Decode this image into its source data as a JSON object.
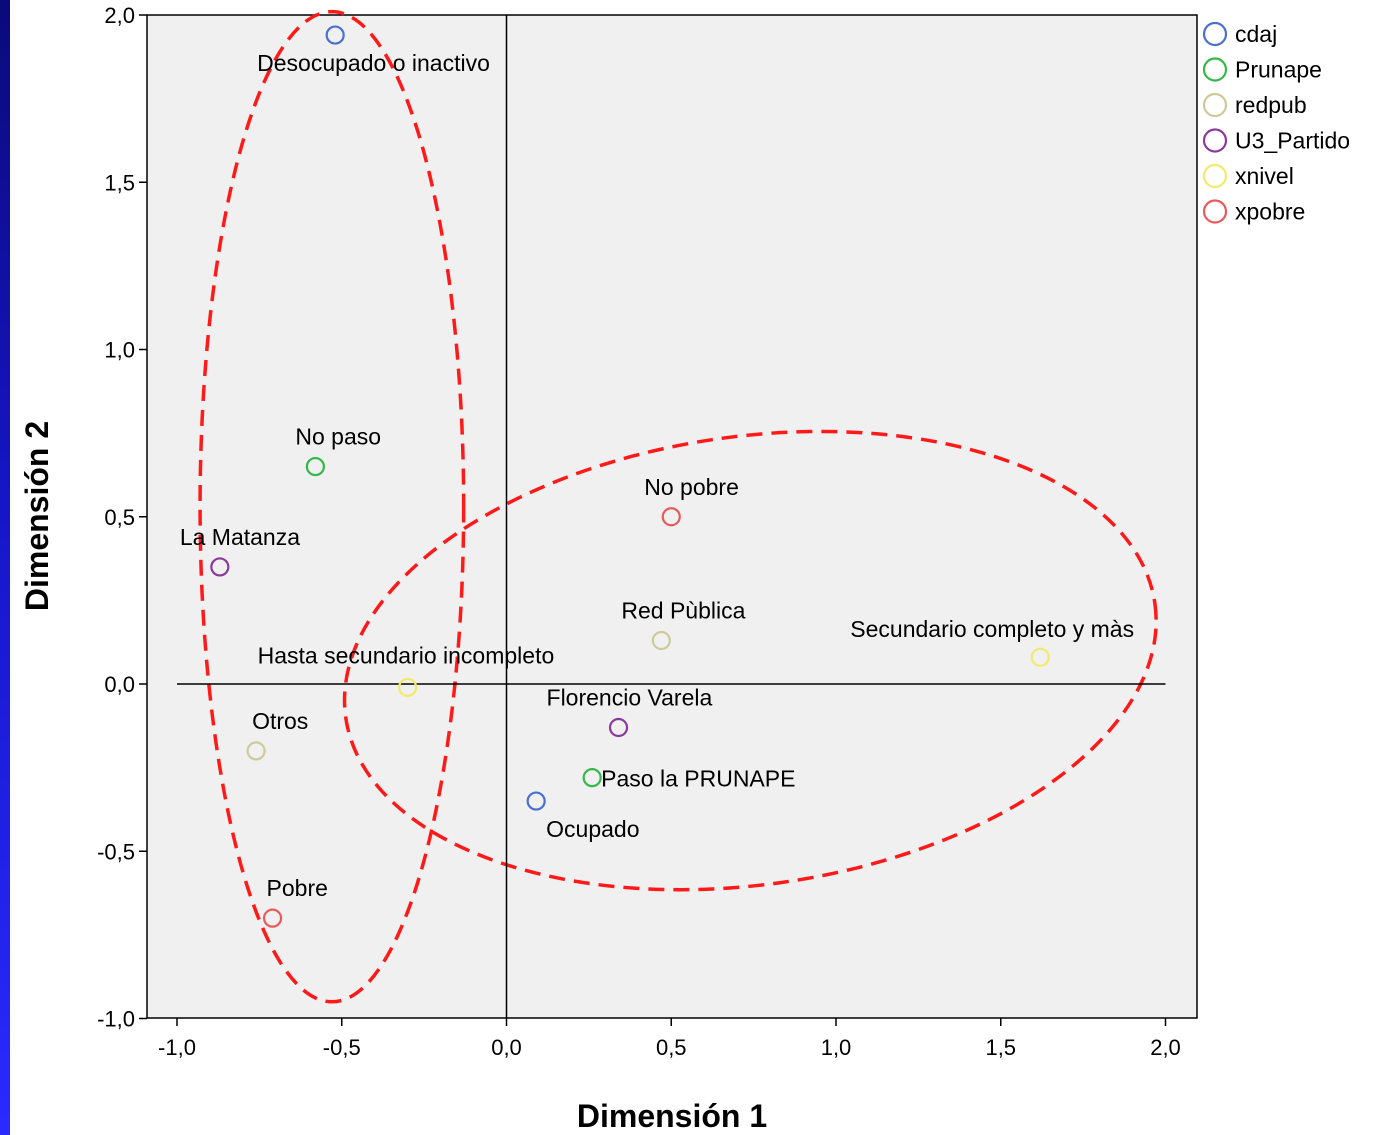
{
  "chart_data": {
    "type": "scatter",
    "xlabel": "Dimensión 1",
    "ylabel": "Dimensión 2",
    "xlim": [
      -1.1,
      2.1
    ],
    "ylim": [
      -1.0,
      2.0
    ],
    "x_ticks": [
      {
        "value": -1.0,
        "label": "-1,0"
      },
      {
        "value": -0.5,
        "label": "-0,5"
      },
      {
        "value": 0.0,
        "label": "0,0"
      },
      {
        "value": 0.5,
        "label": "0,5"
      },
      {
        "value": 1.0,
        "label": "1,0"
      },
      {
        "value": 1.5,
        "label": "1,5"
      },
      {
        "value": 2.0,
        "label": "2,0"
      }
    ],
    "y_ticks": [
      {
        "value": -1.0,
        "label": "-1,0"
      },
      {
        "value": -0.5,
        "label": "-0,5"
      },
      {
        "value": 0.0,
        "label": "0,0"
      },
      {
        "value": 0.5,
        "label": "0,5"
      },
      {
        "value": 1.0,
        "label": "1,0"
      },
      {
        "value": 1.5,
        "label": "1,5"
      },
      {
        "value": 2.0,
        "label": "2,0"
      }
    ],
    "grid": false,
    "reference_lines": {
      "x": 0.0,
      "y": 0.0
    },
    "legend_position": "right",
    "series": [
      {
        "name": "cdaj",
        "color": "#4a6fd0",
        "points": [
          {
            "label": "Desocupado o inactivo",
            "x": -0.52,
            "y": 1.94
          },
          {
            "label": "Ocupado",
            "x": 0.09,
            "y": -0.35
          }
        ]
      },
      {
        "name": "Prunape",
        "color": "#33b84a",
        "points": [
          {
            "label": "No paso",
            "x": -0.58,
            "y": 0.65
          },
          {
            "label": "Paso la PRUNAPE",
            "x": 0.26,
            "y": -0.28
          }
        ]
      },
      {
        "name": "redpub",
        "color": "#cfc99a",
        "points": [
          {
            "label": "Red Pùblica",
            "x": 0.47,
            "y": 0.13
          },
          {
            "label": "Otros",
            "x": -0.76,
            "y": -0.2
          }
        ]
      },
      {
        "name": "U3_Partido",
        "color": "#8a3a9a",
        "points": [
          {
            "label": "La Matanza",
            "x": -0.87,
            "y": 0.35
          },
          {
            "label": "Florencio Varela",
            "x": 0.34,
            "y": -0.13
          }
        ]
      },
      {
        "name": "xnivel",
        "color": "#f2ea6a",
        "points": [
          {
            "label": "Hasta secundario incompleto",
            "x": -0.3,
            "y": -0.01
          },
          {
            "label": "Secundario completo y màs",
            "x": 1.62,
            "y": 0.08
          }
        ]
      },
      {
        "name": "xpobre",
        "color": "#e85a5a",
        "points": [
          {
            "label": "No pobre",
            "x": 0.5,
            "y": 0.5
          },
          {
            "label": "Pobre",
            "x": -0.71,
            "y": -0.7
          }
        ]
      }
    ],
    "annotations": [
      {
        "type": "dashed-ellipse",
        "color": "#ff1a1a",
        "cx": -0.53,
        "cy": 0.53,
        "rx": 0.4,
        "ry": 1.48
      },
      {
        "type": "dashed-ellipse",
        "color": "#ff1a1a",
        "cx": 0.74,
        "cy": 0.07,
        "rx": 1.24,
        "ry": 0.67,
        "rotation_deg": 8
      }
    ]
  }
}
